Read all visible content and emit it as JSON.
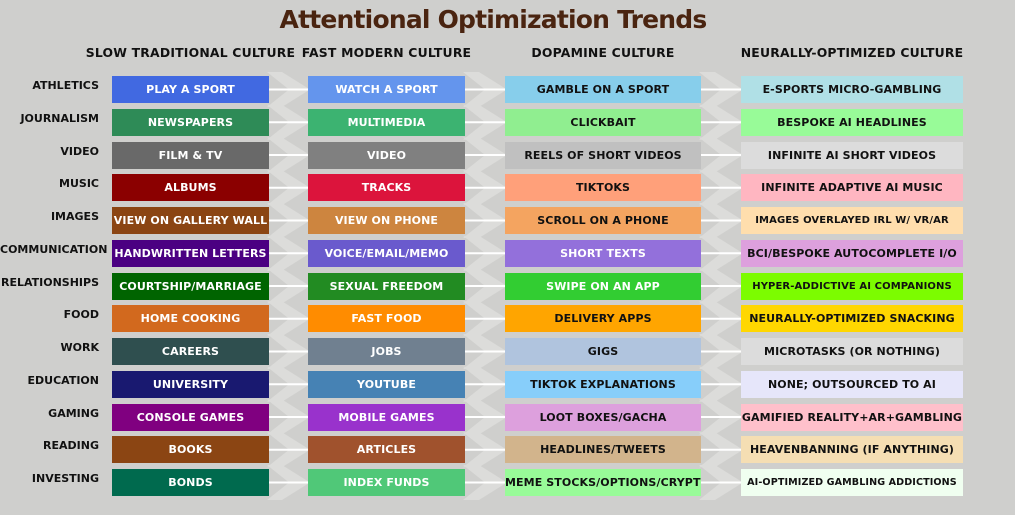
{
  "title": "Attentional Optimization Trends",
  "columns": [
    "SLOW TRADITIONAL CULTURE",
    "FAST MODERN CULTURE",
    "DOPAMINE CULTURE",
    "NEURALLY-OPTIMIZED CULTURE"
  ],
  "rows": [
    {
      "label": "ATHLETICS",
      "cells": [
        {
          "text": "PLAY A SPORT",
          "bg": "#4169e1",
          "fg": "#ffffff"
        },
        {
          "text": "WATCH A SPORT",
          "bg": "#6495ed",
          "fg": "#ffffff"
        },
        {
          "text": "GAMBLE ON A SPORT",
          "bg": "#87ceeb",
          "fg": "#111111"
        },
        {
          "text": "E-SPORTS MICRO-GAMBLING",
          "bg": "#b0e0e6",
          "fg": "#111111"
        }
      ]
    },
    {
      "label": "JOURNALISM",
      "cells": [
        {
          "text": "NEWSPAPERS",
          "bg": "#2e8b57",
          "fg": "#ffffff"
        },
        {
          "text": "MULTIMEDIA",
          "bg": "#3cb371",
          "fg": "#ffffff"
        },
        {
          "text": "CLICKBAIT",
          "bg": "#90ee90",
          "fg": "#111111"
        },
        {
          "text": "BESPOKE AI HEADLINES",
          "bg": "#98fb98",
          "fg": "#111111"
        }
      ]
    },
    {
      "label": "VIDEO",
      "cells": [
        {
          "text": "FILM & TV",
          "bg": "#696969",
          "fg": "#ffffff"
        },
        {
          "text": "VIDEO",
          "bg": "#808080",
          "fg": "#ffffff"
        },
        {
          "text": "REELS OF SHORT VIDEOS",
          "bg": "#c0c0c0",
          "fg": "#111111"
        },
        {
          "text": "INFINITE AI SHORT VIDEOS",
          "bg": "#dcdcdc",
          "fg": "#111111"
        }
      ]
    },
    {
      "label": "MUSIC",
      "cells": [
        {
          "text": "ALBUMS",
          "bg": "#8b0000",
          "fg": "#ffffff"
        },
        {
          "text": "TRACKS",
          "bg": "#dc143c",
          "fg": "#ffffff"
        },
        {
          "text": "TIKTOKS",
          "bg": "#ffa07a",
          "fg": "#111111"
        },
        {
          "text": "INFINITE ADAPTIVE AI MUSIC",
          "bg": "#ffb6c1",
          "fg": "#111111"
        }
      ]
    },
    {
      "label": "IMAGES",
      "cells": [
        {
          "text": "VIEW ON GALLERY WALL",
          "bg": "#8b4513",
          "fg": "#ffffff"
        },
        {
          "text": "VIEW ON PHONE",
          "bg": "#cd853f",
          "fg": "#ffffff"
        },
        {
          "text": "SCROLL ON A PHONE",
          "bg": "#f4a460",
          "fg": "#111111"
        },
        {
          "text": "IMAGES OVERLAYED IRL W/ VR/AR",
          "bg": "#ffdead",
          "fg": "#111111"
        }
      ]
    },
    {
      "label": "COMMUNICATION",
      "cells": [
        {
          "text": "HANDWRITTEN LETTERS",
          "bg": "#4b0082",
          "fg": "#ffffff"
        },
        {
          "text": "VOICE/EMAIL/MEMO",
          "bg": "#6a5acd",
          "fg": "#ffffff"
        },
        {
          "text": "SHORT TEXTS",
          "bg": "#9370db",
          "fg": "#ffffff"
        },
        {
          "text": "BCI/BESPOKE AUTOCOMPLETE I/O",
          "bg": "#dda0dd",
          "fg": "#111111"
        }
      ]
    },
    {
      "label": "RELATIONSHIPS",
      "cells": [
        {
          "text": "COURTSHIP/MARRIAGE",
          "bg": "#006400",
          "fg": "#ffffff"
        },
        {
          "text": "SEXUAL FREEDOM",
          "bg": "#228b22",
          "fg": "#ffffff"
        },
        {
          "text": "SWIPE ON AN APP",
          "bg": "#32cd32",
          "fg": "#ffffff"
        },
        {
          "text": "HYPER-ADDICTIVE AI COMPANIONS",
          "bg": "#7cfc00",
          "fg": "#111111"
        }
      ]
    },
    {
      "label": "FOOD",
      "cells": [
        {
          "text": "HOME COOKING",
          "bg": "#d2691e",
          "fg": "#ffffff"
        },
        {
          "text": "FAST FOOD",
          "bg": "#ff8c00",
          "fg": "#ffffff"
        },
        {
          "text": "DELIVERY APPS",
          "bg": "#ffa500",
          "fg": "#111111"
        },
        {
          "text": "NEURALLY-OPTIMIZED SNACKING",
          "bg": "#ffd700",
          "fg": "#111111"
        }
      ]
    },
    {
      "label": "WORK",
      "cells": [
        {
          "text": "CAREERS",
          "bg": "#2f4f4f",
          "fg": "#ffffff"
        },
        {
          "text": "JOBS",
          "bg": "#708090",
          "fg": "#ffffff"
        },
        {
          "text": "GIGS",
          "bg": "#b0c4de",
          "fg": "#111111"
        },
        {
          "text": "MICROTASKS (OR NOTHING)",
          "bg": "#dcdcdc",
          "fg": "#111111"
        }
      ]
    },
    {
      "label": "EDUCATION",
      "cells": [
        {
          "text": "UNIVERSITY",
          "bg": "#191970",
          "fg": "#ffffff"
        },
        {
          "text": "YOUTUBE",
          "bg": "#4682b4",
          "fg": "#ffffff"
        },
        {
          "text": "TIKTOK EXPLANATIONS",
          "bg": "#87cefa",
          "fg": "#111111"
        },
        {
          "text": "NONE; OUTSOURCED TO AI",
          "bg": "#e6e6fa",
          "fg": "#111111"
        }
      ]
    },
    {
      "label": "GAMING",
      "cells": [
        {
          "text": "CONSOLE GAMES",
          "bg": "#800080",
          "fg": "#ffffff"
        },
        {
          "text": "MOBILE GAMES",
          "bg": "#9932cc",
          "fg": "#ffffff"
        },
        {
          "text": "LOOT BOXES/GACHA",
          "bg": "#dda0dd",
          "fg": "#111111"
        },
        {
          "text": "GAMIFIED REALITY+AR+GAMBLING",
          "bg": "#ffc0cb",
          "fg": "#111111"
        }
      ]
    },
    {
      "label": "READING",
      "cells": [
        {
          "text": "BOOKS",
          "bg": "#8b4513",
          "fg": "#ffffff"
        },
        {
          "text": "ARTICLES",
          "bg": "#a0522d",
          "fg": "#ffffff"
        },
        {
          "text": "HEADLINES/TWEETS",
          "bg": "#d2b48c",
          "fg": "#111111"
        },
        {
          "text": "HEAVENBANNING (IF ANYTHING)",
          "bg": "#f5deb3",
          "fg": "#111111"
        }
      ]
    },
    {
      "label": "INVESTING",
      "cells": [
        {
          "text": "BONDS",
          "bg": "#006a4e",
          "fg": "#ffffff"
        },
        {
          "text": "INDEX FUNDS",
          "bg": "#50c878",
          "fg": "#ffffff"
        },
        {
          "text": "MEME STOCKS/OPTIONS/CRYPTO",
          "bg": "#98fb98",
          "fg": "#111111"
        },
        {
          "text": "AI-OPTIMIZED GAMBLING ADDICTIONS",
          "bg": "#f0fff0",
          "fg": "#111111"
        }
      ]
    }
  ]
}
